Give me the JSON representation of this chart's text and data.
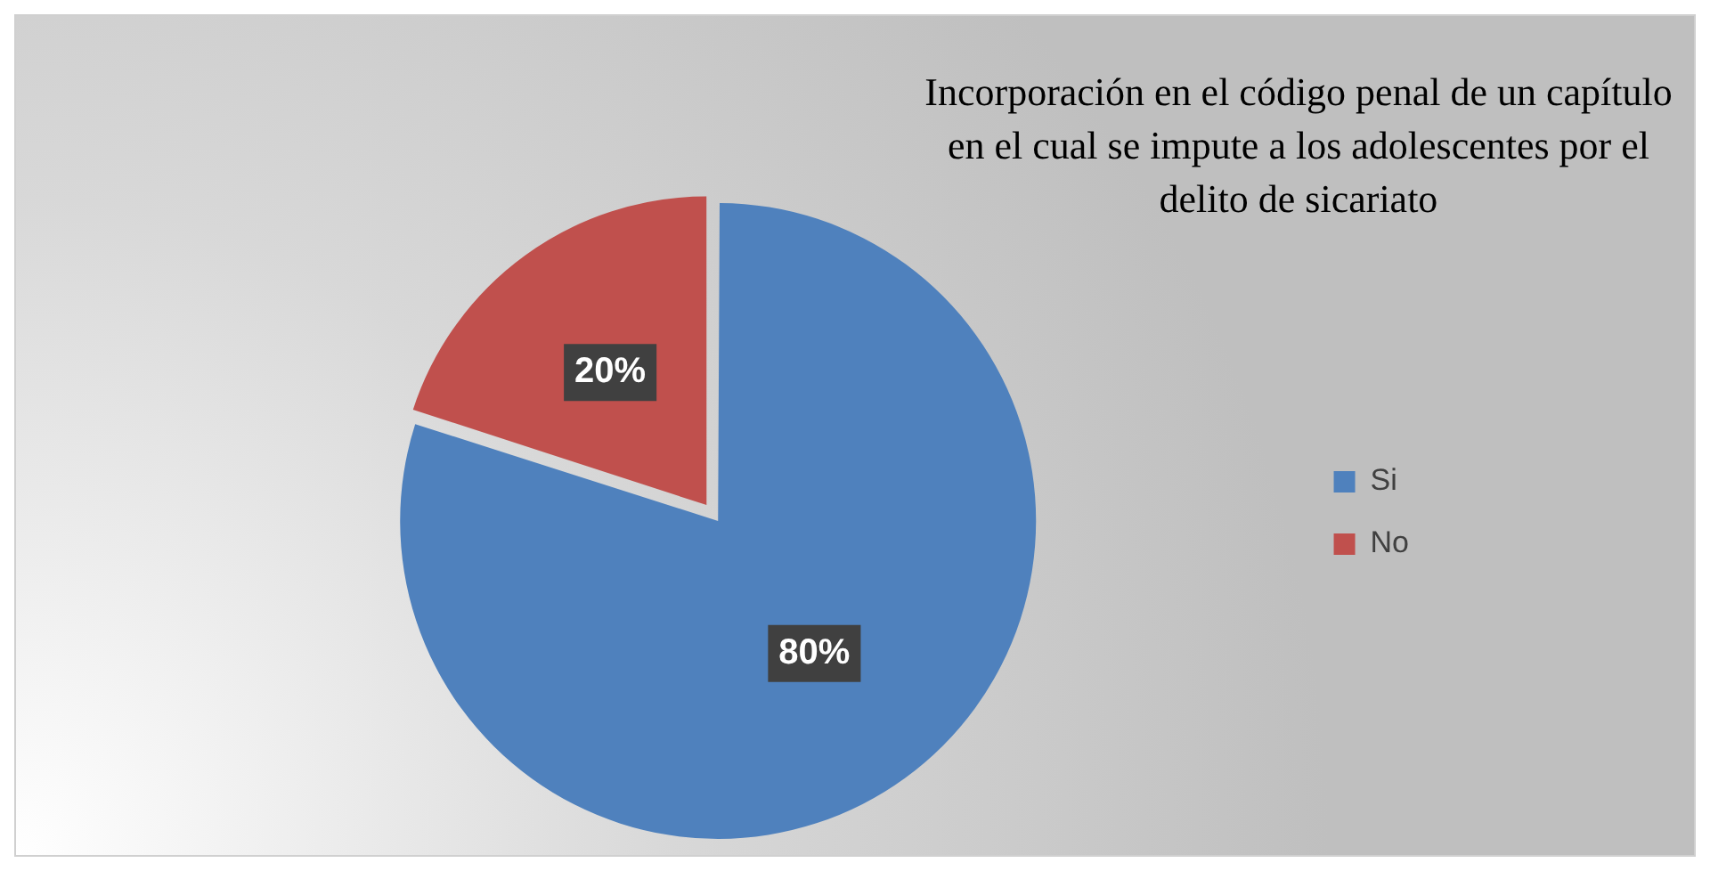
{
  "chart_data": {
    "type": "pie",
    "title": "Incorporación en el código penal de un capítulo en el cual se impute a los adolescentes por el delito de sicariato",
    "categories": [
      "Si",
      "No"
    ],
    "values": [
      80,
      20
    ],
    "colors": [
      "#4f81bd",
      "#c0504d"
    ],
    "value_labels": [
      "80%",
      "20%"
    ],
    "legend": "right"
  }
}
